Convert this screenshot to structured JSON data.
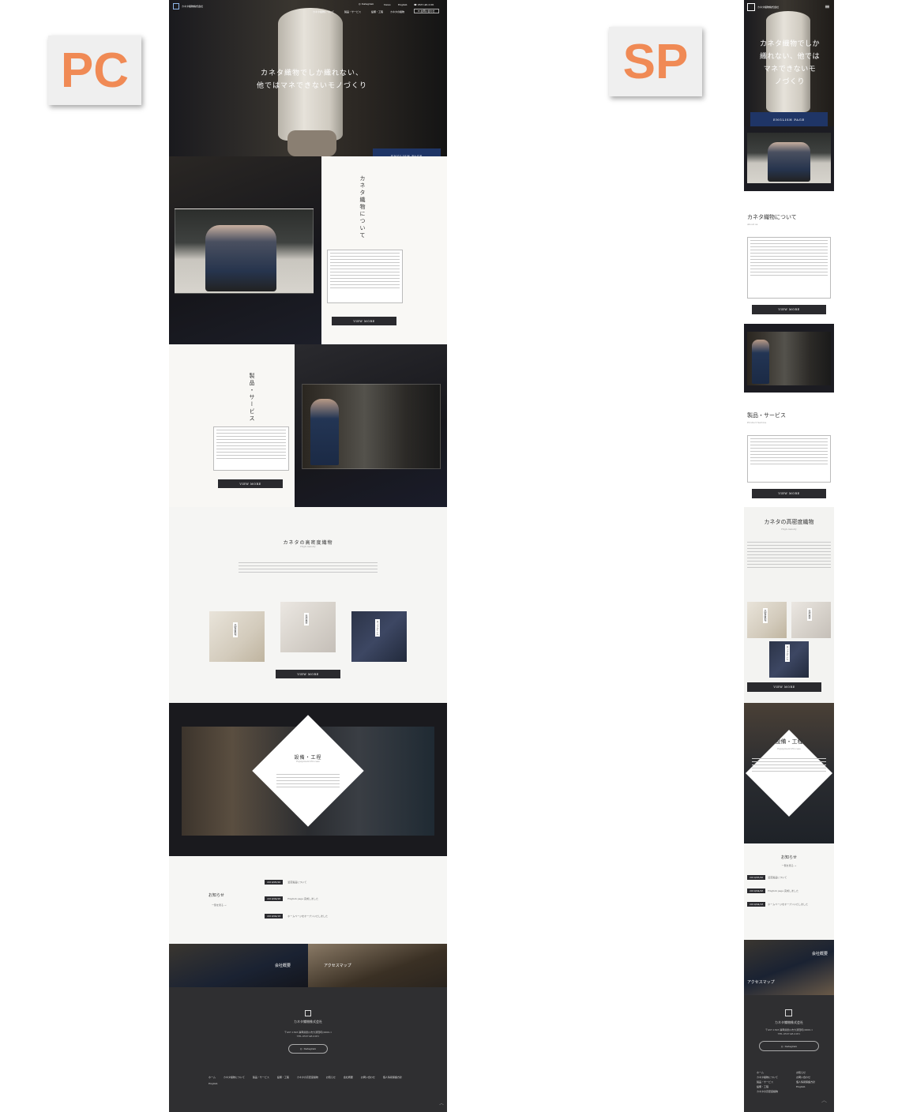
{
  "labels": {
    "pc": "PC",
    "sp": "SP"
  },
  "company": {
    "name": "カネタ織物株式会社",
    "english_btn": "ENGLISH PAGE"
  },
  "pc": {
    "header": {
      "nav": [
        "カネタ織物について",
        "製品・サービス",
        "設備・工程",
        "カネタの織物"
      ],
      "instagram": "Instagram",
      "news": "News",
      "english": "English",
      "tel": "0537-48-2181",
      "contact": "お問い合わせ"
    },
    "hero": {
      "line1": "カネタ織物でしか織れない、",
      "line2": "他ではマネできないモノづくり"
    },
    "about": {
      "title": "カネタ織物について",
      "btn": "VIEW MORE"
    },
    "product": {
      "title": "製品・サービス",
      "btn": "VIEW MORE"
    },
    "density": {
      "title": "カネタの高密度織物",
      "subtitle": "High density",
      "items": [
        "高密度帆布",
        "天然素材",
        "ネップデニム"
      ],
      "btn": "VIEW MORE"
    },
    "equipment": {
      "title": "設備・工程",
      "subtitle": "Equipment Process"
    },
    "news": {
      "title": "お知らせ",
      "more": "一覧を見る →",
      "items": [
        {
          "date": "2019/05/20",
          "text": "釜茹製品について"
        },
        {
          "date": "2019/04/26",
          "text": "English page 完成しました"
        },
        {
          "date": "2019/04/18",
          "text": "ホームページをオープンいたしました"
        }
      ]
    },
    "banners": {
      "left": "会社概要",
      "right": "アクセスマップ"
    },
    "footer": {
      "address": "〒437-1303 静岡県掛川市大須賀町(0000-1",
      "tel": "TEL.0537-48-2181",
      "instagram": "Instagram",
      "links": [
        "ホーム",
        "カネタ織物について",
        "製品・サービス",
        "設備・工程",
        "カネタの高密度織物",
        "お知らせ",
        "会社概要",
        "お問い合わせ",
        "個人情報保護方針",
        "English"
      ]
    }
  },
  "sp": {
    "hero": {
      "line1": "カネタ織物でしか",
      "line2": "織れない、他では",
      "line3": "マネできないモ",
      "line4": "ノづくり"
    },
    "about": {
      "title": "カネタ織物について",
      "subtitle": "About us",
      "btn": "VIEW MORE"
    },
    "product": {
      "title": "製品・サービス",
      "subtitle": "Product Service",
      "btn": "VIEW MORE"
    },
    "density": {
      "title": "カネタの高密度織物",
      "subtitle": "High density",
      "items": [
        "高密度帆布",
        "天然素材",
        "ネップデニム"
      ],
      "btn": "VIEW MORE"
    },
    "equipment": {
      "title": "設備・工程",
      "subtitle": "Equipment Process"
    },
    "news": {
      "title": "お知らせ",
      "more": "一覧を見る →",
      "items": [
        {
          "date": "2019/05/20",
          "text": "釜茹製品について"
        },
        {
          "date": "2019/04/26",
          "text": "English page 完成しました"
        },
        {
          "date": "2019/04/18",
          "text": "ホームページをオープンいたしました"
        }
      ]
    },
    "banners": {
      "left": "会社概要",
      "right": "アクセスマップ"
    },
    "footer": {
      "address": "〒437-1303 静岡県掛川市大須賀町(0000-1",
      "tel": "TEL.0537-48-2181",
      "instagram": "Instagram",
      "links_left": [
        "ホーム",
        "カネタ織物について",
        "製品・サービス",
        "設備・工程",
        "カネタの高密度織物"
      ],
      "links_right": [
        "お知らせ",
        "お問い合わせ",
        "個人情報保護方針",
        "English"
      ]
    }
  }
}
